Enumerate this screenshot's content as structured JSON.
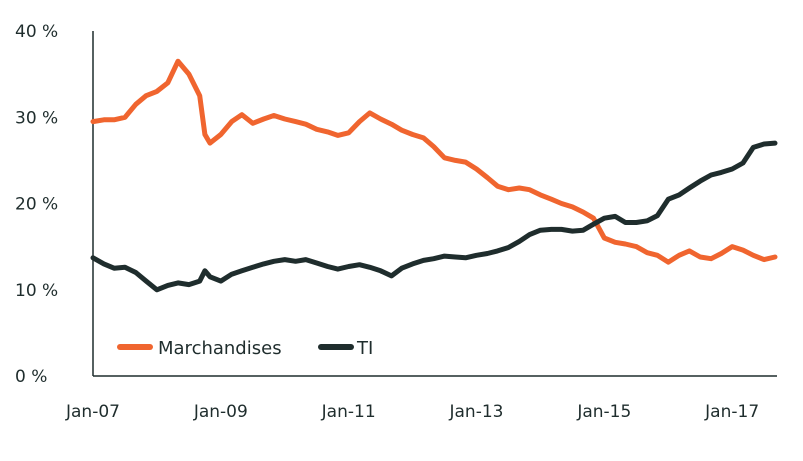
{
  "chart_data": {
    "type": "line",
    "title": "",
    "xlabel": "",
    "ylabel": "",
    "ylim": [
      0,
      40
    ],
    "y_ticks": [
      "0 %",
      "10 %",
      "20 %",
      "30 %",
      "40 %"
    ],
    "y_tick_values": [
      0,
      10,
      20,
      30,
      40
    ],
    "x_ticks": [
      "Jan-07",
      "Jan-09",
      "Jan-11",
      "Jan-13",
      "Jan-15",
      "Jan-17"
    ],
    "x_tick_values": [
      2007.0,
      2009.0,
      2011.0,
      2013.0,
      2015.0,
      2017.0
    ],
    "xlim": [
      2007.0,
      2017.67
    ],
    "grid": false,
    "legend_position": "bottom-left",
    "series": [
      {
        "name": "Marchandises",
        "color": "#f0652f",
        "points": [
          [
            2007.0,
            29.5
          ],
          [
            2007.17,
            29.7
          ],
          [
            2007.33,
            29.7
          ],
          [
            2007.5,
            30.0
          ],
          [
            2007.67,
            31.5
          ],
          [
            2007.83,
            32.5
          ],
          [
            2008.0,
            33.0
          ],
          [
            2008.17,
            34.0
          ],
          [
            2008.33,
            36.5
          ],
          [
            2008.5,
            35.0
          ],
          [
            2008.67,
            32.5
          ],
          [
            2008.75,
            28.0
          ],
          [
            2008.83,
            27.0
          ],
          [
            2009.0,
            28.0
          ],
          [
            2009.17,
            29.5
          ],
          [
            2009.33,
            30.3
          ],
          [
            2009.5,
            29.3
          ],
          [
            2009.67,
            29.8
          ],
          [
            2009.83,
            30.2
          ],
          [
            2010.0,
            29.8
          ],
          [
            2010.17,
            29.5
          ],
          [
            2010.33,
            29.2
          ],
          [
            2010.5,
            28.6
          ],
          [
            2010.67,
            28.3
          ],
          [
            2010.83,
            27.9
          ],
          [
            2011.0,
            28.2
          ],
          [
            2011.17,
            29.5
          ],
          [
            2011.33,
            30.5
          ],
          [
            2011.5,
            29.8
          ],
          [
            2011.67,
            29.2
          ],
          [
            2011.83,
            28.5
          ],
          [
            2012.0,
            28.0
          ],
          [
            2012.17,
            27.6
          ],
          [
            2012.33,
            26.6
          ],
          [
            2012.5,
            25.3
          ],
          [
            2012.67,
            25.0
          ],
          [
            2012.83,
            24.8
          ],
          [
            2013.0,
            24.0
          ],
          [
            2013.17,
            23.0
          ],
          [
            2013.33,
            22.0
          ],
          [
            2013.5,
            21.6
          ],
          [
            2013.67,
            21.8
          ],
          [
            2013.83,
            21.6
          ],
          [
            2014.0,
            21.0
          ],
          [
            2014.17,
            20.5
          ],
          [
            2014.33,
            20.0
          ],
          [
            2014.5,
            19.6
          ],
          [
            2014.67,
            19.0
          ],
          [
            2014.83,
            18.3
          ],
          [
            2015.0,
            16.0
          ],
          [
            2015.17,
            15.5
          ],
          [
            2015.33,
            15.3
          ],
          [
            2015.5,
            15.0
          ],
          [
            2015.67,
            14.3
          ],
          [
            2015.83,
            14.0
          ],
          [
            2016.0,
            13.2
          ],
          [
            2016.17,
            14.0
          ],
          [
            2016.33,
            14.5
          ],
          [
            2016.5,
            13.8
          ],
          [
            2016.67,
            13.6
          ],
          [
            2016.83,
            14.2
          ],
          [
            2017.0,
            15.0
          ],
          [
            2017.17,
            14.6
          ],
          [
            2017.33,
            14.0
          ],
          [
            2017.5,
            13.5
          ],
          [
            2017.67,
            13.8
          ]
        ]
      },
      {
        "name": "TI",
        "color": "#1f2d2d",
        "points": [
          [
            2007.0,
            13.7
          ],
          [
            2007.17,
            13.0
          ],
          [
            2007.33,
            12.5
          ],
          [
            2007.5,
            12.6
          ],
          [
            2007.67,
            12.0
          ],
          [
            2007.83,
            11.0
          ],
          [
            2008.0,
            10.0
          ],
          [
            2008.17,
            10.5
          ],
          [
            2008.33,
            10.8
          ],
          [
            2008.5,
            10.6
          ],
          [
            2008.67,
            11.0
          ],
          [
            2008.75,
            12.2
          ],
          [
            2008.83,
            11.5
          ],
          [
            2009.0,
            11.0
          ],
          [
            2009.17,
            11.8
          ],
          [
            2009.33,
            12.2
          ],
          [
            2009.5,
            12.6
          ],
          [
            2009.67,
            13.0
          ],
          [
            2009.83,
            13.3
          ],
          [
            2010.0,
            13.5
          ],
          [
            2010.17,
            13.3
          ],
          [
            2010.33,
            13.5
          ],
          [
            2010.5,
            13.1
          ],
          [
            2010.67,
            12.7
          ],
          [
            2010.83,
            12.4
          ],
          [
            2011.0,
            12.7
          ],
          [
            2011.17,
            12.9
          ],
          [
            2011.33,
            12.6
          ],
          [
            2011.5,
            12.2
          ],
          [
            2011.67,
            11.6
          ],
          [
            2011.83,
            12.5
          ],
          [
            2012.0,
            13.0
          ],
          [
            2012.17,
            13.4
          ],
          [
            2012.33,
            13.6
          ],
          [
            2012.5,
            13.9
          ],
          [
            2012.67,
            13.8
          ],
          [
            2012.83,
            13.7
          ],
          [
            2013.0,
            14.0
          ],
          [
            2013.17,
            14.2
          ],
          [
            2013.33,
            14.5
          ],
          [
            2013.5,
            14.9
          ],
          [
            2013.67,
            15.6
          ],
          [
            2013.83,
            16.4
          ],
          [
            2014.0,
            16.9
          ],
          [
            2014.17,
            17.0
          ],
          [
            2014.33,
            17.0
          ],
          [
            2014.5,
            16.8
          ],
          [
            2014.67,
            16.9
          ],
          [
            2014.83,
            17.6
          ],
          [
            2015.0,
            18.3
          ],
          [
            2015.17,
            18.5
          ],
          [
            2015.33,
            17.8
          ],
          [
            2015.5,
            17.8
          ],
          [
            2015.67,
            18.0
          ],
          [
            2015.83,
            18.6
          ],
          [
            2016.0,
            20.5
          ],
          [
            2016.17,
            21.0
          ],
          [
            2016.33,
            21.8
          ],
          [
            2016.5,
            22.6
          ],
          [
            2016.67,
            23.3
          ],
          [
            2016.83,
            23.6
          ],
          [
            2017.0,
            24.0
          ],
          [
            2017.17,
            24.7
          ],
          [
            2017.33,
            26.5
          ],
          [
            2017.5,
            26.9
          ],
          [
            2017.67,
            27.0
          ]
        ]
      }
    ]
  }
}
